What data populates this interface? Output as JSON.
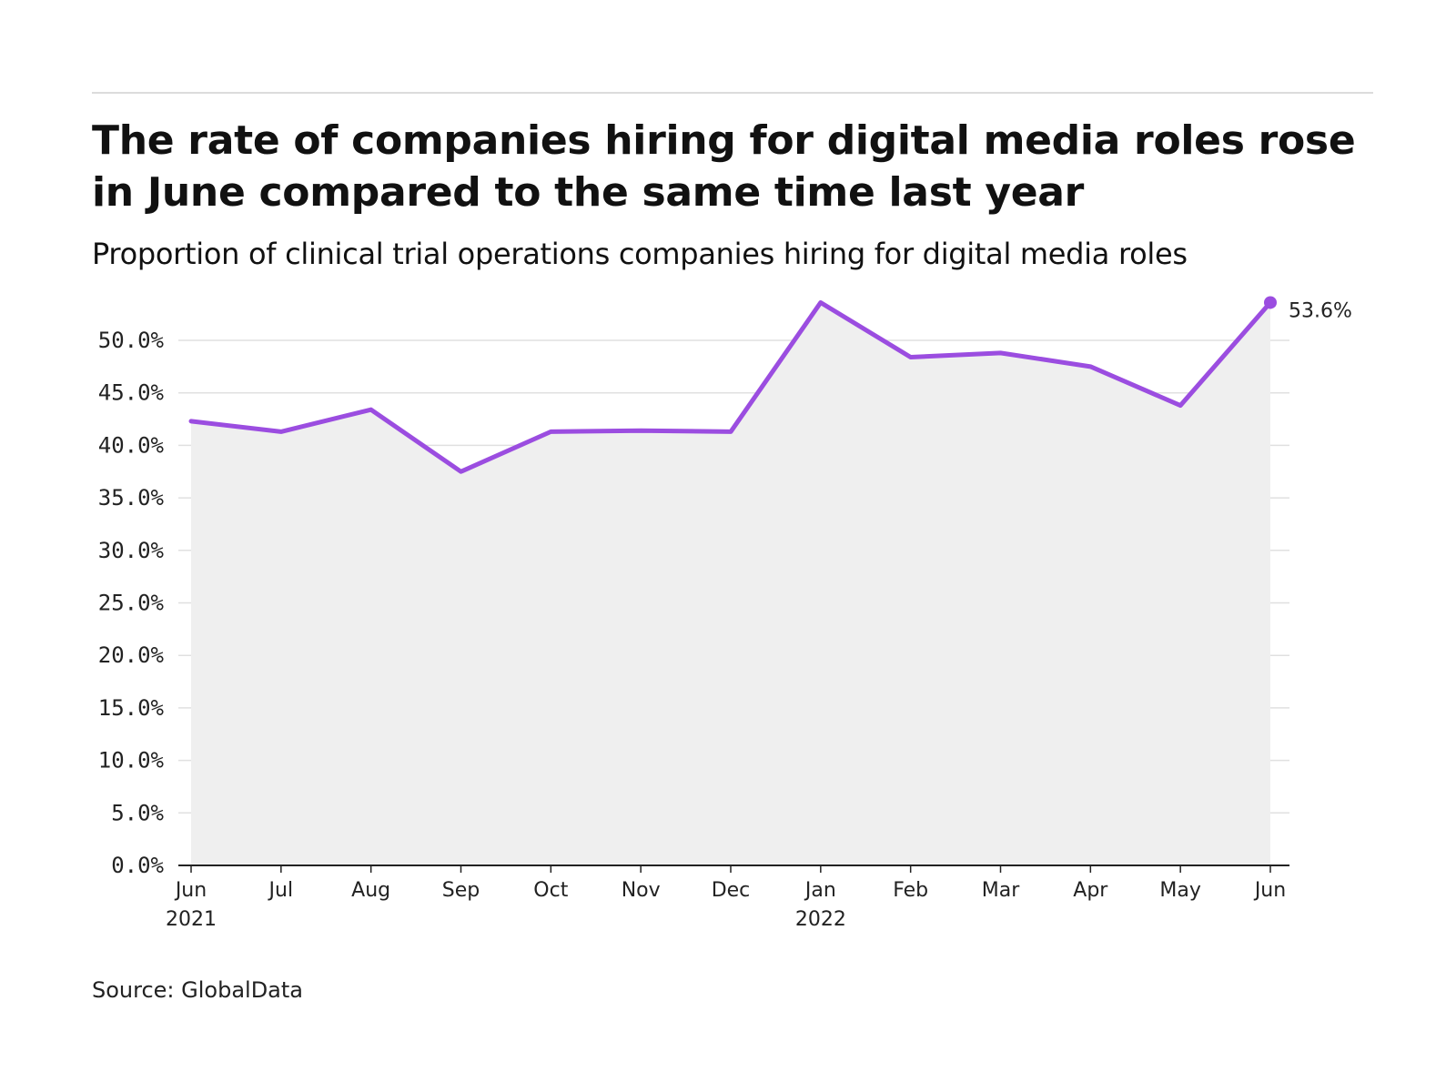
{
  "title": "The rate of companies hiring for digital media roles rose in June compared to the same time last year",
  "subtitle": "Proportion of clinical trial operations companies hiring for digital media roles",
  "source": "Source: GlobalData",
  "colors": {
    "line": "#9b4de0",
    "area": "#efefef",
    "grid": "#e0e0e0",
    "axis": "#222222"
  },
  "chart_data": {
    "type": "line",
    "categories": [
      "Jun 2021",
      "Jul",
      "Aug",
      "Sep",
      "Oct",
      "Nov",
      "Dec",
      "Jan 2022",
      "Feb",
      "Mar",
      "Apr",
      "May",
      "Jun"
    ],
    "x_tick_labels": [
      [
        "Jun",
        "2021"
      ],
      [
        "Jul"
      ],
      [
        "Aug"
      ],
      [
        "Sep"
      ],
      [
        "Oct"
      ],
      [
        "Nov"
      ],
      [
        "Dec"
      ],
      [
        "Jan",
        "2022"
      ],
      [
        "Feb"
      ],
      [
        "Mar"
      ],
      [
        "Apr"
      ],
      [
        "May"
      ],
      [
        "Jun"
      ]
    ],
    "series": [
      {
        "values": [
          42.3,
          41.3,
          43.4,
          37.5,
          41.3,
          41.4,
          41.3,
          53.6,
          48.4,
          48.8,
          47.5,
          43.8,
          53.6
        ]
      }
    ],
    "ylim": [
      0,
      55
    ],
    "y_ticks": [
      0,
      5,
      10,
      15,
      20,
      25,
      30,
      35,
      40,
      45,
      50
    ],
    "y_tick_labels": [
      "0.0%",
      "5.0%",
      "10.0%",
      "15.0%",
      "20.0%",
      "25.0%",
      "30.0%",
      "35.0%",
      "40.0%",
      "45.0%",
      "50.0%"
    ],
    "end_label": "53.6%",
    "xlabel": "",
    "ylabel": "",
    "grid": true,
    "area_fill": true
  }
}
